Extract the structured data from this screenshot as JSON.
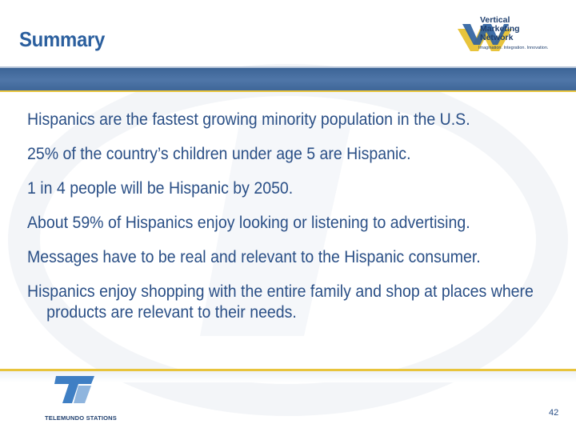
{
  "slide": {
    "title": "Summary",
    "bullets": [
      "Hispanics are the fastest growing minority population in the U.S.",
      "25% of the country’s children under age 5 are Hispanic.",
      "1 in 4 people will be Hispanic by 2050.",
      "About 59% of Hispanics enjoy looking or listening to advertising.",
      "Messages have to be real and relevant to the Hispanic consumer.",
      "Hispanics enjoy shopping with the entire family and shop at places where products are relevant to their needs."
    ],
    "page_number": "42"
  },
  "logos": {
    "vmn": {
      "line1": "Vertical",
      "line2": "Marketing",
      "line3": "Network",
      "tagline": "Imagination. Integration. Innovation."
    },
    "telemundo": {
      "text": "TELEMUNDO STATIONS"
    }
  },
  "colors": {
    "title": "#2b5f9e",
    "body_text": "#2a4f86",
    "band": "#4f76a8",
    "accent_line": "#e8c43c"
  }
}
